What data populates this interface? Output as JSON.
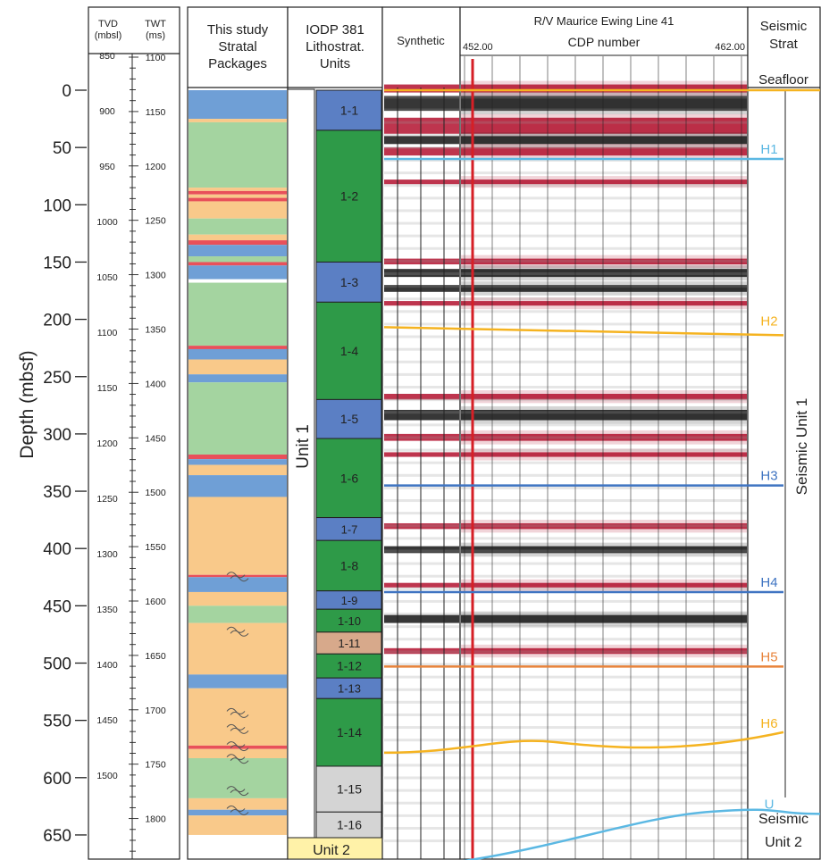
{
  "depth_axis": {
    "label": "Depth (mbsf)",
    "ticks": [
      "0",
      "50",
      "100",
      "150",
      "200",
      "250",
      "300",
      "350",
      "400",
      "450",
      "500",
      "550",
      "600",
      "650"
    ]
  },
  "tvd_twt": {
    "tvd_header": [
      "TVD",
      "(mbsl)"
    ],
    "twt_header": [
      "TWT",
      "(ms)"
    ],
    "tvd_labels": [
      "850",
      "900",
      "950",
      "1000",
      "1050",
      "1100",
      "1150",
      "1200",
      "1250",
      "1300",
      "1350",
      "1400",
      "1450",
      "1500"
    ],
    "twt_labels": [
      "1100",
      "1150",
      "1200",
      "1250",
      "1300",
      "1350",
      "1400",
      "1450",
      "1500",
      "1550",
      "1600",
      "1650",
      "1700",
      "1750",
      "1800"
    ]
  },
  "stratal": {
    "header": [
      "This study",
      "Stratal",
      "Packages"
    ],
    "legend_colors": {
      "blue": "#6f9fd6",
      "green": "#a4d4a0",
      "orange": "#f9c98a",
      "red": "#e8505a",
      "white": "#ffffff"
    },
    "bands": [
      [
        "blue",
        0,
        25
      ],
      [
        "orange",
        25,
        28
      ],
      [
        "green",
        28,
        85
      ],
      [
        "orange",
        85,
        88
      ],
      [
        "red",
        88,
        91
      ],
      [
        "orange",
        91,
        94
      ],
      [
        "red",
        94,
        97
      ],
      [
        "orange",
        97,
        112
      ],
      [
        "green",
        112,
        126
      ],
      [
        "orange",
        126,
        131
      ],
      [
        "red",
        131,
        135
      ],
      [
        "blue",
        135,
        145
      ],
      [
        "green",
        145,
        150
      ],
      [
        "red",
        150,
        153
      ],
      [
        "blue",
        153,
        165
      ],
      [
        "white",
        165,
        168
      ],
      [
        "green",
        168,
        223
      ],
      [
        "red",
        223,
        226
      ],
      [
        "blue",
        226,
        235
      ],
      [
        "orange",
        235,
        248
      ],
      [
        "blue",
        248,
        255
      ],
      [
        "green",
        255,
        318
      ],
      [
        "red",
        318,
        322
      ],
      [
        "blue",
        322,
        327
      ],
      [
        "orange",
        327,
        336
      ],
      [
        "blue",
        336,
        355
      ],
      [
        "orange",
        355,
        423
      ],
      [
        "red",
        423,
        425
      ],
      [
        "blue",
        425,
        438
      ],
      [
        "orange",
        438,
        450
      ],
      [
        "green",
        450,
        465
      ],
      [
        "orange",
        465,
        510
      ],
      [
        "blue",
        510,
        522
      ],
      [
        "orange",
        522,
        572
      ],
      [
        "red",
        572,
        575
      ],
      [
        "orange",
        575,
        583
      ],
      [
        "green",
        583,
        618
      ],
      [
        "orange",
        618,
        628
      ],
      [
        "blue",
        628,
        633
      ],
      [
        "orange",
        633,
        650
      ]
    ],
    "symbols": [
      423,
      471,
      542,
      556,
      571,
      582,
      610,
      627
    ]
  },
  "litho": {
    "header": [
      "IODP 381",
      "Lithostrat.",
      "Units"
    ],
    "unit1_label": "Unit 1",
    "unit2_label": "Unit 2",
    "colors": {
      "blue": "#5b7fc4",
      "green": "#2e9a48",
      "tan": "#d7a98b",
      "gray": "#d4d4d4",
      "yellow": "#fff2a8"
    },
    "units": [
      {
        "label": "1-1",
        "top": 0,
        "bot": 35,
        "color": "blue"
      },
      {
        "label": "1-2",
        "top": 35,
        "bot": 150,
        "color": "green"
      },
      {
        "label": "1-3",
        "top": 150,
        "bot": 185,
        "color": "blue"
      },
      {
        "label": "1-4",
        "top": 185,
        "bot": 270,
        "color": "green"
      },
      {
        "label": "1-5",
        "top": 270,
        "bot": 304,
        "color": "blue"
      },
      {
        "label": "1-6",
        "top": 304,
        "bot": 373,
        "color": "green"
      },
      {
        "label": "1-7",
        "top": 373,
        "bot": 393,
        "color": "blue"
      },
      {
        "label": "1-8",
        "top": 393,
        "bot": 437,
        "color": "green"
      },
      {
        "label": "1-9",
        "top": 437,
        "bot": 453,
        "color": "blue"
      },
      {
        "label": "1-10",
        "top": 453,
        "bot": 473,
        "color": "green"
      },
      {
        "label": "1-11",
        "top": 473,
        "bot": 492,
        "color": "tan"
      },
      {
        "label": "1-12",
        "top": 492,
        "bot": 513,
        "color": "green"
      },
      {
        "label": "1-13",
        "top": 513,
        "bot": 531,
        "color": "blue"
      },
      {
        "label": "1-14",
        "top": 531,
        "bot": 590,
        "color": "green"
      },
      {
        "label": "1-15",
        "top": 590,
        "bot": 630,
        "color": "gray"
      },
      {
        "label": "1-16",
        "top": 630,
        "bot": 680,
        "color": "gray"
      }
    ]
  },
  "synthetic": {
    "header": "Synthetic"
  },
  "seismic_section": {
    "title": "R/V Maurice Ewing Line 41",
    "cdp_label": "CDP number",
    "cdp_start": "452.00",
    "cdp_end": "462.00",
    "bands": [
      [
        "red",
        -5,
        2
      ],
      [
        "black",
        5,
        18
      ],
      [
        "red",
        24,
        38
      ],
      [
        "black",
        40,
        47
      ],
      [
        "red",
        50,
        57
      ],
      [
        "red",
        78,
        82
      ],
      [
        "red",
        147,
        152
      ],
      [
        "black",
        156,
        163
      ],
      [
        "black",
        170,
        176
      ],
      [
        "red",
        184,
        188
      ],
      [
        "red",
        265,
        270
      ],
      [
        "black",
        279,
        288
      ],
      [
        "red",
        300,
        306
      ],
      [
        "red",
        316,
        320
      ],
      [
        "red",
        378,
        383
      ],
      [
        "black",
        398,
        404
      ],
      [
        "red",
        430,
        434
      ],
      [
        "black",
        458,
        465
      ],
      [
        "red",
        487,
        492
      ]
    ]
  },
  "horizons": [
    {
      "label": "Seafloor",
      "depth": 0,
      "color": "#f5b320"
    },
    {
      "label": "H1",
      "depth": 60,
      "color": "#5bb8e3"
    },
    {
      "label": "H2",
      "depth": 210,
      "color": "#f5b320"
    },
    {
      "label": "H3",
      "depth": 345,
      "color": "#3f74c2"
    },
    {
      "label": "H4",
      "depth": 438,
      "color": "#3f74c2"
    },
    {
      "label": "H5",
      "depth": 503,
      "color": "#e8833a"
    },
    {
      "label": "H6",
      "depth": 572,
      "color": "#f5b320"
    },
    {
      "label": "U",
      "depth": 655,
      "color": "#5bb8e3"
    }
  ],
  "seismic_strat": {
    "header": [
      "Seismic",
      "Strat"
    ],
    "unit1_label": "Seismic Unit 1",
    "unit2_label": [
      "Seismic",
      "Unit 2"
    ]
  }
}
